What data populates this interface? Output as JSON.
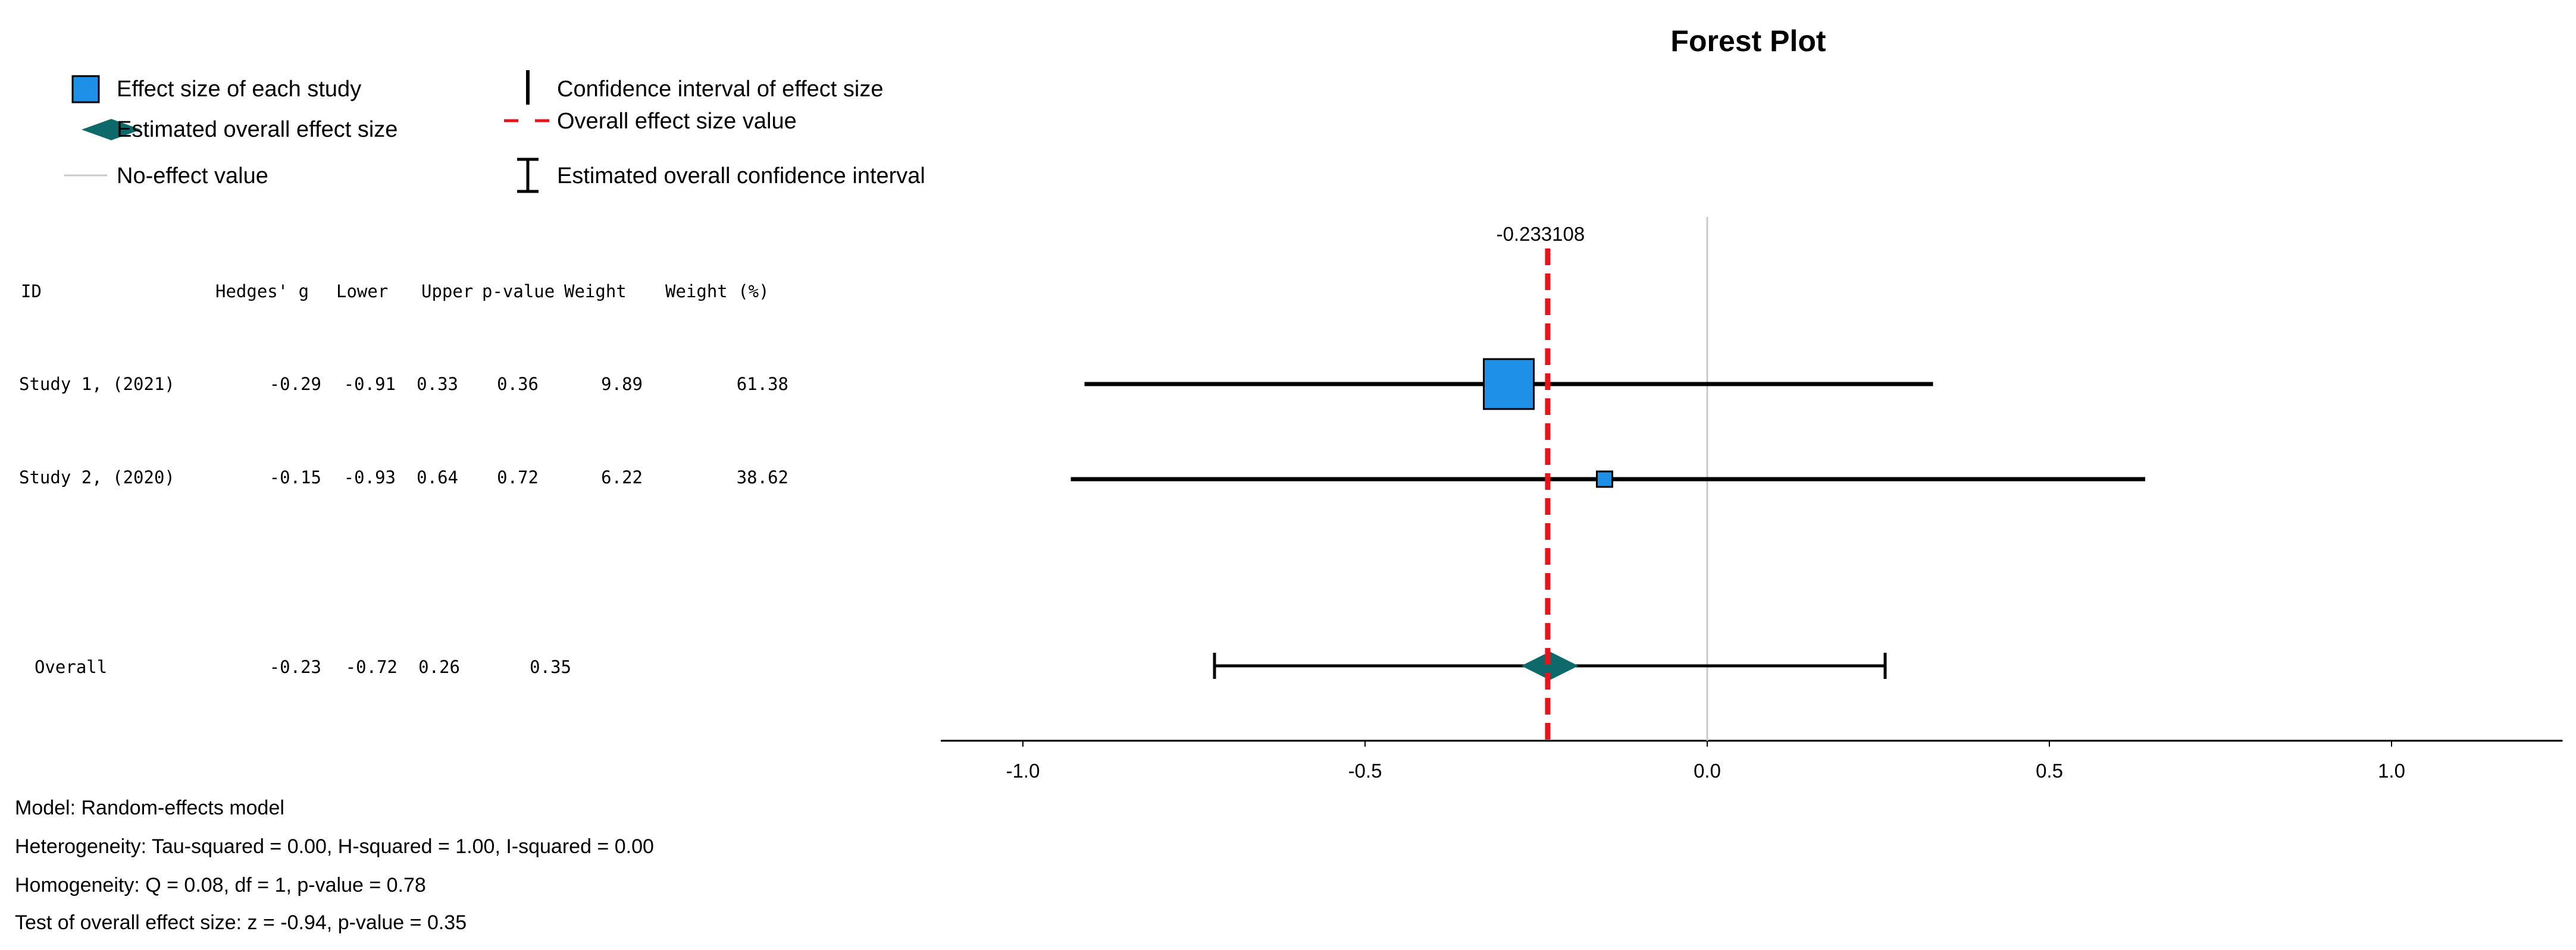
{
  "chart_data": {
    "type": "forest",
    "title": "Forest Plot",
    "legend": {
      "placement": "top-left",
      "items": [
        {
          "label": "Effect size of each study",
          "icon": "blue-square-icon"
        },
        {
          "label": "Confidence interval of effect size",
          "icon": "vertical-bar-icon"
        },
        {
          "label": "Estimated overall effect size",
          "icon": "teal-diamond-icon"
        },
        {
          "label": "Overall effect size value",
          "icon": "red-dashed-line-icon"
        },
        {
          "label": "No-effect value",
          "icon": "gray-line-icon"
        },
        {
          "label": "Estimated overall confidence interval",
          "icon": "capped-bar-icon"
        }
      ]
    },
    "columns": [
      "ID",
      "Hedges' g",
      "Lower",
      "Upper",
      "p-value",
      "Weight",
      "Weight (%)"
    ],
    "studies": [
      {
        "id": "Study 1, (2021)",
        "g": -0.29,
        "lower": -0.91,
        "upper": 0.33,
        "p": 0.36,
        "weight": 9.89,
        "weight_pct": 61.38,
        "cells": [
          "Study 1, (2021)",
          "-0.29",
          "-0.91",
          "0.33",
          "0.36",
          "9.89",
          "61.38"
        ]
      },
      {
        "id": "Study 2, (2020)",
        "g": -0.15,
        "lower": -0.93,
        "upper": 0.64,
        "p": 0.72,
        "weight": 6.22,
        "weight_pct": 38.62,
        "cells": [
          "Study 2, (2020)",
          "-0.15",
          "-0.93",
          "0.64",
          "0.72",
          "6.22",
          "38.62"
        ]
      }
    ],
    "overall": {
      "id": "Overall",
      "g": -0.23,
      "lower": -0.72,
      "upper": 0.26,
      "p": 0.35,
      "cells": [
        "Overall",
        "-0.23",
        "-0.72",
        "0.26",
        "0.35"
      ]
    },
    "overall_value": -0.233108,
    "overall_value_label": "-0.233108",
    "no_effect_value": 0.0,
    "xlim": [
      -1.12,
      1.25
    ],
    "x_ticks": [
      -1.0,
      -0.5,
      0.0,
      0.5,
      1.0
    ],
    "x_tick_labels": [
      "-1.0",
      "-0.5",
      "0.0",
      "0.5",
      "1.0"
    ],
    "colors": {
      "study_marker": "#1e90e8",
      "diamond": "#0e6a6a",
      "overall_line": "#e8141b",
      "no_effect_line": "#c8c8c8",
      "ci_line": "#000000"
    }
  },
  "footnotes": [
    "Model: Random-effects model",
    "Heterogeneity: Tau-squared = 0.00, H-squared = 1.00, I-squared = 0.00",
    "Homogeneity: Q = 0.08, df = 1, p-value = 0.78",
    "Test of overall effect size: z = -0.94, p-value = 0.35"
  ]
}
